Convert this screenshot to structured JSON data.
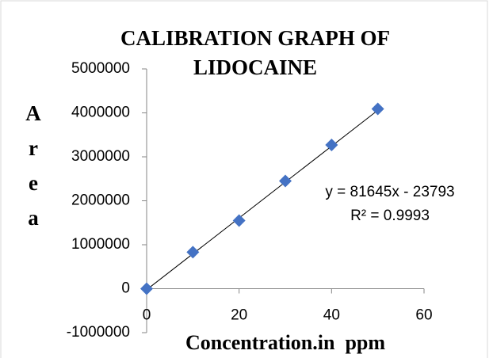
{
  "chart_data": {
    "type": "scatter",
    "title": "CALIBRATION GRAPH OF LIDOCAINE",
    "x_label": "Concentration.in  ppm",
    "y_label": "Area",
    "series": [
      {
        "name": "Area",
        "color": "#4472c4",
        "x": [
          0,
          10,
          20,
          30,
          40,
          50
        ],
        "values": [
          0,
          830000,
          1550000,
          2450000,
          3270000,
          4090000
        ]
      }
    ],
    "xlim": [
      0,
      60
    ],
    "xticks": [
      0,
      20,
      40,
      60
    ],
    "ylim": [
      -1000000,
      5000000
    ],
    "yticks": [
      -1000000,
      0,
      1000000,
      2000000,
      3000000,
      4000000,
      5000000
    ],
    "trendline": {
      "slope": 81645,
      "intercept": -23793,
      "color": "#000000",
      "equation": "y = 81645x - 23793",
      "r2": "R² = 0.9993"
    },
    "grid": false
  }
}
